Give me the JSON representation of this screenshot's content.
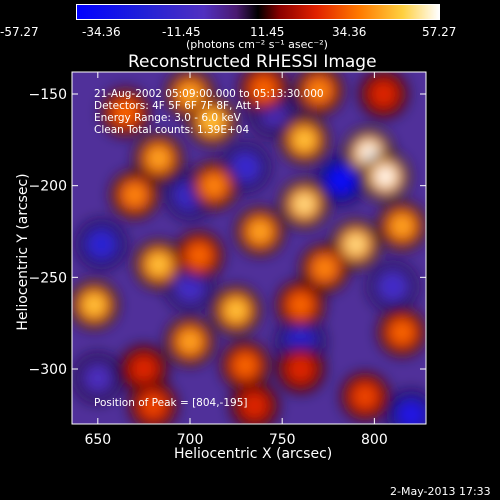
{
  "colorbar": {
    "tick_labels": [
      "-57.27",
      "-34.36",
      "-11.45",
      "11.45",
      "34.36",
      "57.27"
    ],
    "units_label": "(photons cm⁻² s⁻¹ asec⁻²)",
    "min": -57.27,
    "max": 57.27
  },
  "title": "Reconstructed RHESSI Image",
  "info": {
    "line1": "21-Aug-2002 05:09:00.000 to 05:13:30.000",
    "line2": "Detectors: 4F 5F 6F 7F 8F, Att 1",
    "line3": "Energy Range: 3.0 - 6.0 keV",
    "line4": "Clean    Total counts: 1.39E+04",
    "peak": "Position of Peak = [804,-195]"
  },
  "footer": {
    "date": "2-May-2013 17:33"
  },
  "chart_data": {
    "type": "heatmap",
    "title": "Reconstructed RHESSI Image",
    "xlabel": "Heliocentric X (arcsec)",
    "ylabel": "Heliocentric Y (arcsec)",
    "xlim": [
      636,
      828
    ],
    "ylim": [
      -330,
      -138
    ],
    "x_ticks": [
      650,
      700,
      750,
      800
    ],
    "y_ticks": [
      -150,
      -200,
      -250,
      -300
    ],
    "x_tick_labels": [
      "650",
      "700",
      "750",
      "800"
    ],
    "y_tick_labels": [
      "−150",
      "−200",
      "−250",
      "−300"
    ],
    "colorbar_range": [
      -57.27,
      57.27
    ],
    "peak_position": [
      804,
      -195
    ],
    "sources": [
      {
        "x": 665,
        "y": -160,
        "value": 30
      },
      {
        "x": 700,
        "y": -150,
        "value": 40
      },
      {
        "x": 712,
        "y": -165,
        "value": 45
      },
      {
        "x": 740,
        "y": -147,
        "value": 30
      },
      {
        "x": 770,
        "y": -148,
        "value": 35
      },
      {
        "x": 805,
        "y": -150,
        "value": 20
      },
      {
        "x": 762,
        "y": -175,
        "value": 45
      },
      {
        "x": 762,
        "y": -210,
        "value": 50
      },
      {
        "x": 797,
        "y": -182,
        "value": 57
      },
      {
        "x": 806,
        "y": -195,
        "value": 57
      },
      {
        "x": 790,
        "y": -232,
        "value": 50
      },
      {
        "x": 815,
        "y": -222,
        "value": 40
      },
      {
        "x": 670,
        "y": -205,
        "value": 35
      },
      {
        "x": 683,
        "y": -185,
        "value": 40
      },
      {
        "x": 713,
        "y": -200,
        "value": 35
      },
      {
        "x": 738,
        "y": -225,
        "value": 40
      },
      {
        "x": 683,
        "y": -243,
        "value": 45
      },
      {
        "x": 705,
        "y": -238,
        "value": 30
      },
      {
        "x": 648,
        "y": -265,
        "value": 45
      },
      {
        "x": 725,
        "y": -268,
        "value": 45
      },
      {
        "x": 700,
        "y": -285,
        "value": 40
      },
      {
        "x": 760,
        "y": -265,
        "value": 30
      },
      {
        "x": 773,
        "y": -245,
        "value": 35
      },
      {
        "x": 730,
        "y": -298,
        "value": 30
      },
      {
        "x": 675,
        "y": -300,
        "value": 20
      },
      {
        "x": 760,
        "y": -300,
        "value": 20
      },
      {
        "x": 815,
        "y": -280,
        "value": 30
      },
      {
        "x": 795,
        "y": -315,
        "value": 25
      },
      {
        "x": 680,
        "y": -320,
        "value": 25
      },
      {
        "x": 735,
        "y": -320,
        "value": 20
      }
    ],
    "holes": [
      {
        "x": 782,
        "y": -197,
        "value": -57
      },
      {
        "x": 730,
        "y": -190,
        "value": -30
      },
      {
        "x": 700,
        "y": -205,
        "value": -30
      },
      {
        "x": 652,
        "y": -232,
        "value": -35
      },
      {
        "x": 700,
        "y": -255,
        "value": -25
      },
      {
        "x": 760,
        "y": -285,
        "value": -35
      },
      {
        "x": 820,
        "y": -325,
        "value": -45
      },
      {
        "x": 650,
        "y": -305,
        "value": -20
      },
      {
        "x": 810,
        "y": -255,
        "value": -25
      },
      {
        "x": 745,
        "y": -160,
        "value": -20
      }
    ]
  }
}
